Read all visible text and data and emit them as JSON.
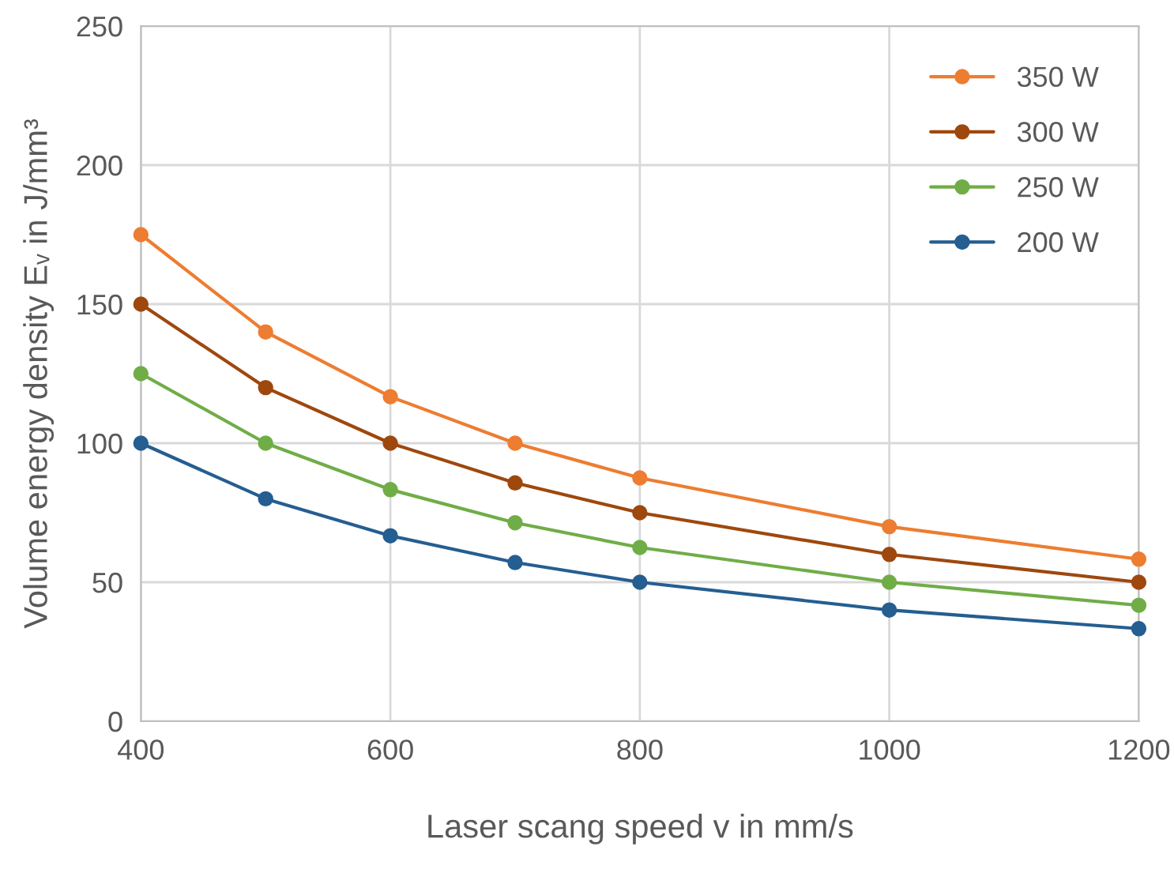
{
  "chart_data": {
    "type": "line",
    "xlabel": "Laser scang speed v in mm/s",
    "ylabel": "Volume energy density Eᵥ in J/mm³",
    "x": [
      400,
      500,
      600,
      700,
      800,
      1000,
      1200
    ],
    "series": [
      {
        "name": "350 W",
        "color": "#ed7d31",
        "values": [
          175,
          140,
          116.7,
          100,
          87.5,
          70,
          58.3
        ]
      },
      {
        "name": "300 W",
        "color": "#9e480e",
        "values": [
          150,
          120,
          100,
          85.7,
          75,
          60,
          50
        ]
      },
      {
        "name": "250 W",
        "color": "#70ad47",
        "values": [
          125,
          100,
          83.3,
          71.4,
          62.5,
          50,
          41.7
        ]
      },
      {
        "name": "200 W",
        "color": "#255e91",
        "values": [
          100,
          80,
          66.7,
          57.1,
          50,
          40,
          33.3
        ]
      }
    ],
    "xlim": [
      400,
      1200
    ],
    "xticks": [
      400,
      600,
      800,
      1000,
      1200
    ],
    "ylim": [
      0,
      250
    ],
    "yticks": [
      0,
      50,
      100,
      150,
      200,
      250
    ],
    "grid": true,
    "legend": "top right",
    "marker": "circle",
    "line_style": "solid"
  }
}
